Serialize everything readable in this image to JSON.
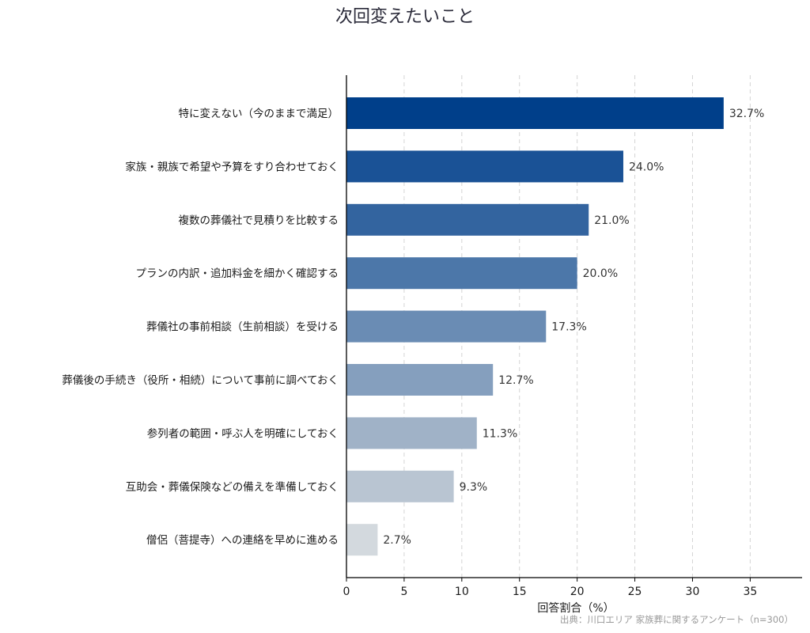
{
  "chart_data": {
    "type": "bar",
    "orientation": "horizontal",
    "title": "次回変えたいこと",
    "xlabel": "回答割合（%）",
    "ylabel": "",
    "xlim": [
      0,
      39.5
    ],
    "xticks": [
      0,
      5,
      10,
      15,
      20,
      25,
      30,
      35
    ],
    "grid": "vertical-dashed",
    "source": "出典：川口エリア 家族葬に関するアンケート（n=300）",
    "categories": [
      "特に変えない（今のままで満足）",
      "家族・親族で希望や予算をすり合わせておく",
      "複数の葬儀社で見積りを比較する",
      "プランの内訳・追加料金を細かく確認する",
      "葬儀社の事前相談（生前相談）を受ける",
      "葬儀後の手続き（役所・相続）について事前に調べておく",
      "参列者の範囲・呼ぶ人を明確にしておく",
      "互助会・葬儀保険などの備えを準備しておく",
      "僧侶（菩提寺）への連絡を早めに進める"
    ],
    "values": [
      32.7,
      24.0,
      21.0,
      20.0,
      17.3,
      12.7,
      11.3,
      9.3,
      2.7
    ],
    "value_labels": [
      "32.7%",
      "24.0%",
      "21.0%",
      "20.0%",
      "17.3%",
      "12.7%",
      "11.3%",
      "9.3%",
      "2.7%"
    ],
    "colors": [
      "#003f8a",
      "#1a5296",
      "#33649f",
      "#4c77a9",
      "#6a8cb4",
      "#859fbe",
      "#a0b2c7",
      "#b9c5d2",
      "#d3d9de"
    ]
  }
}
